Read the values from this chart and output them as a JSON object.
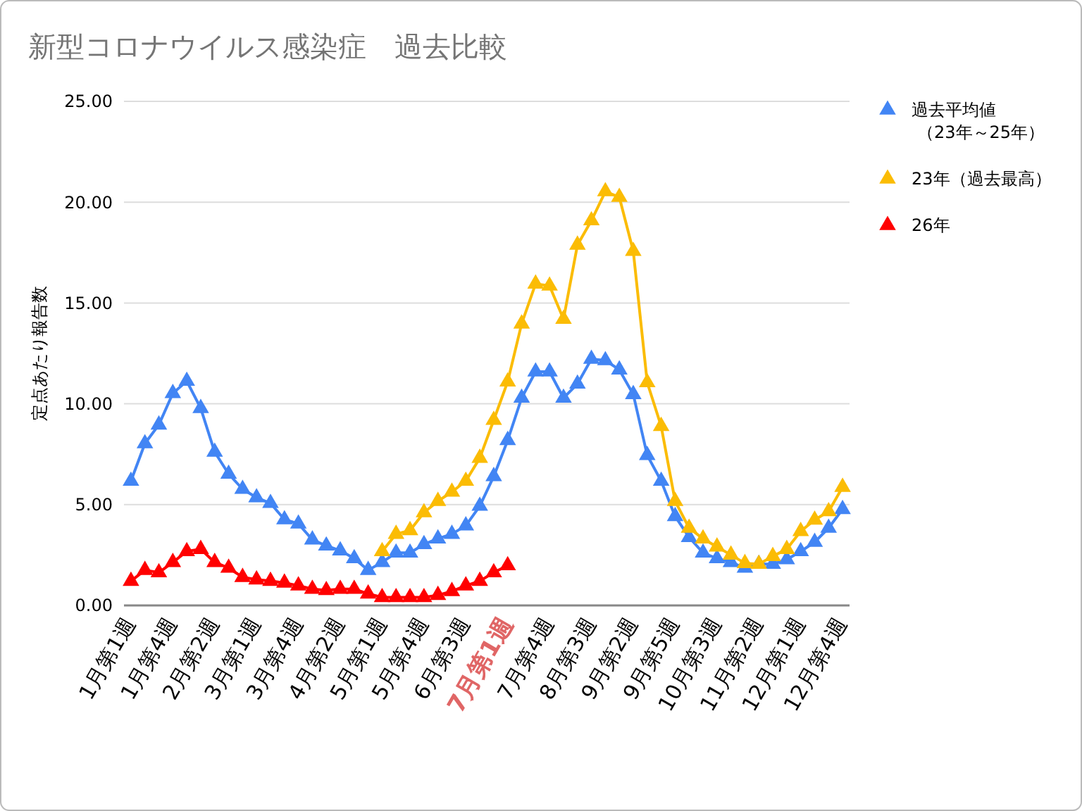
{
  "chart_data": {
    "type": "line",
    "title": "新型コロナウイルス感染症　過去比較",
    "ylabel": "定点あたり報告数",
    "categories": [
      "1月第1週",
      null,
      null,
      "1月第4週",
      null,
      null,
      "2月第2週",
      null,
      null,
      "3月第1週",
      null,
      null,
      "3月第4週",
      null,
      null,
      "4月第2週",
      null,
      null,
      "5月第1週",
      null,
      null,
      "5月第4週",
      null,
      null,
      "6月第3週",
      null,
      null,
      "7月第1週",
      null,
      null,
      "7月第4週",
      null,
      null,
      "8月第3週",
      null,
      null,
      "9月第2週",
      null,
      null,
      "9月第5週",
      null,
      null,
      "10月第3週",
      null,
      null,
      "11月第2週",
      null,
      null,
      "12月第1週",
      null,
      null,
      "12月第4週"
    ],
    "series": [
      {
        "name": "過去平均値（23年～25年）",
        "color": "#4285f4",
        "values": [
          6.17,
          8.03,
          8.96,
          10.52,
          11.13,
          9.78,
          7.61,
          6.52,
          5.77,
          5.35,
          5.07,
          4.26,
          4.05,
          3.26,
          2.96,
          2.72,
          2.33,
          1.75,
          2.14,
          2.61,
          2.61,
          3.03,
          3.31,
          3.54,
          3.96,
          4.93,
          6.4,
          8.19,
          10.29,
          11.59,
          11.59,
          10.29,
          10.99,
          12.22,
          12.15,
          11.69,
          10.47,
          7.45,
          6.17,
          4.42,
          3.38,
          2.61,
          2.33,
          2.14,
          1.86,
          2.05,
          2.05,
          2.28,
          2.68,
          3.14,
          3.84,
          4.77
        ]
      },
      {
        "name": "23年（過去最高）",
        "color": "#fbbc04",
        "values": [
          null,
          null,
          null,
          null,
          null,
          null,
          null,
          null,
          null,
          null,
          null,
          null,
          null,
          null,
          null,
          null,
          null,
          null,
          2.68,
          3.54,
          3.72,
          4.61,
          5.17,
          5.63,
          6.17,
          7.31,
          9.19,
          11.1,
          13.97,
          15.95,
          15.85,
          14.2,
          17.88,
          19.09,
          20.53,
          20.25,
          17.57,
          11.06,
          8.89,
          5.17,
          3.84,
          3.31,
          2.91,
          2.51,
          2.09,
          2.05,
          2.44,
          2.79,
          3.68,
          4.24,
          4.66,
          5.87
        ]
      },
      {
        "name": "26年",
        "color": "#ff0000",
        "values": [
          1.21,
          1.75,
          1.63,
          2.14,
          2.68,
          2.79,
          2.14,
          1.86,
          1.4,
          1.28,
          1.21,
          1.12,
          0.98,
          0.81,
          0.75,
          0.81,
          0.81,
          0.58,
          0.4,
          0.4,
          0.4,
          0.4,
          0.51,
          0.7,
          0.98,
          1.21,
          1.63,
          1.98,
          null,
          null,
          null,
          null,
          null,
          null,
          null,
          null,
          null,
          null,
          null,
          null,
          null,
          null,
          null,
          null,
          null,
          null,
          null,
          null,
          null,
          null,
          null,
          null
        ]
      }
    ],
    "ylim": [
      0,
      25
    ],
    "yticks": [
      {
        "value": 0,
        "label": "0.00"
      },
      {
        "value": 5,
        "label": "5.00"
      },
      {
        "value": 10,
        "label": "10.00"
      },
      {
        "value": 15,
        "label": "15.00"
      },
      {
        "value": 20,
        "label": "20.00"
      },
      {
        "value": 25,
        "label": "25.00"
      }
    ],
    "grid": "y",
    "legend": "right",
    "marker": "triangle",
    "line_style": "solid"
  }
}
